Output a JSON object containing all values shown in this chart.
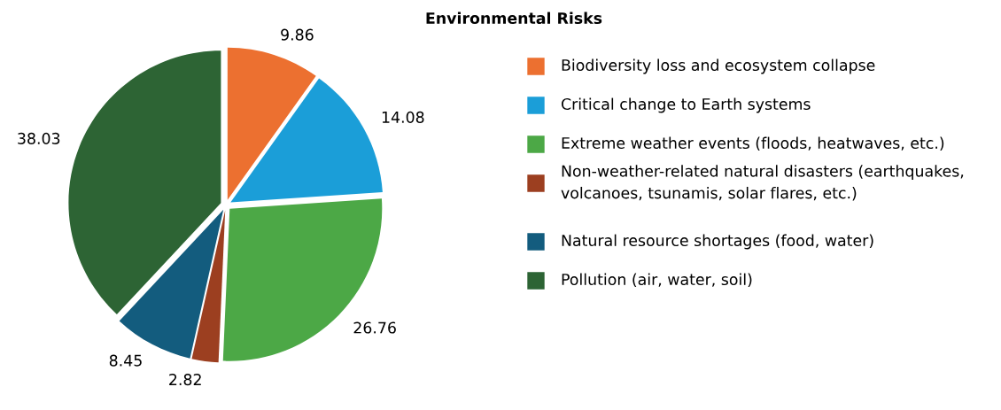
{
  "chart_data": {
    "type": "pie",
    "title": "Environmental Risks",
    "categories": [
      "Biodiversity loss and ecosystem collapse",
      "Critical change to Earth systems",
      "Extreme weather events (floods, heatwaves, etc.)",
      "Non-weather-related natural disasters (earthquakes, volcanoes, tsunamis, solar flares, etc.)",
      "Natural resource shortages (food, water)",
      "Pollution (air, water, soil)"
    ],
    "values": [
      9.86,
      14.08,
      26.76,
      2.82,
      8.45,
      38.03
    ],
    "colors": [
      "#ec7030",
      "#1b9ed8",
      "#4ca846",
      "#9c3f20",
      "#135c7e",
      "#2d6434"
    ],
    "data_labels": true,
    "legend": "right"
  }
}
